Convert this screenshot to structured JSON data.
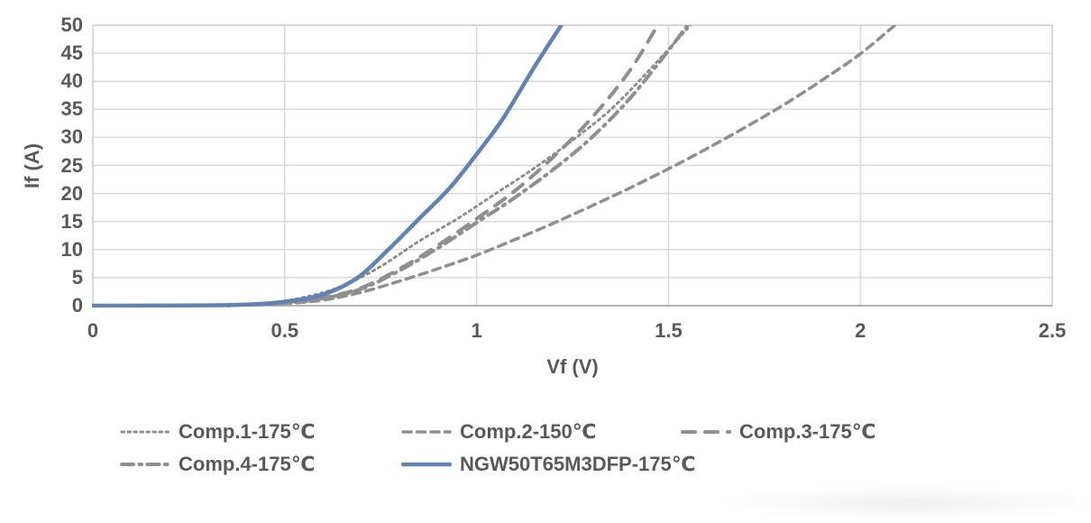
{
  "colors": {
    "text": "#595959",
    "grid": "#d9d9d9",
    "border": "#d2d2d2",
    "axis": "#b3b3b3",
    "series_gray": "#8f8f8f",
    "series_blue": "#6282b4",
    "background": "#ffffff"
  },
  "chart_data": {
    "type": "line",
    "title": "",
    "xlabel": "Vf (V)",
    "ylabel": "If (A)",
    "xlim": [
      0,
      2.5
    ],
    "ylim": [
      0,
      50
    ],
    "grid": true,
    "legend_position": "bottom-left",
    "x_ticks": [
      "0",
      "0.5",
      "1",
      "1.5",
      "2",
      "2.5"
    ],
    "x_tick_values": [
      0,
      0.5,
      1,
      1.5,
      2,
      2.5
    ],
    "y_ticks": [
      "0",
      "5",
      "10",
      "15",
      "20",
      "25",
      "30",
      "35",
      "40",
      "45",
      "50"
    ],
    "y_tick_values": [
      0,
      5,
      10,
      15,
      20,
      25,
      30,
      35,
      40,
      45,
      50
    ],
    "series": [
      {
        "name": "Comp.1-175℃",
        "style": "dotted",
        "color": "#8f8f8f",
        "points": [
          [
            0.3,
            0.1
          ],
          [
            0.45,
            0.5
          ],
          [
            0.55,
            1.5
          ],
          [
            0.65,
            3.5
          ],
          [
            0.75,
            7
          ],
          [
            0.85,
            11.5
          ],
          [
            0.95,
            15.5
          ],
          [
            1.05,
            20
          ],
          [
            1.15,
            24.5
          ],
          [
            1.25,
            29.5
          ],
          [
            1.35,
            35
          ],
          [
            1.45,
            42
          ],
          [
            1.57,
            51
          ]
        ]
      },
      {
        "name": "Comp.2-150℃",
        "style": "dashed",
        "color": "#8f8f8f",
        "points": [
          [
            0.35,
            0.05
          ],
          [
            0.5,
            0.4
          ],
          [
            0.6,
            1
          ],
          [
            0.7,
            2.4
          ],
          [
            0.8,
            4.4
          ],
          [
            0.9,
            6.6
          ],
          [
            1.0,
            9
          ],
          [
            1.1,
            11.8
          ],
          [
            1.2,
            14.7
          ],
          [
            1.3,
            17.8
          ],
          [
            1.4,
            21
          ],
          [
            1.5,
            24.4
          ],
          [
            1.6,
            28
          ],
          [
            1.7,
            31.8
          ],
          [
            1.8,
            35.8
          ],
          [
            1.9,
            40.2
          ],
          [
            2.0,
            44.9
          ],
          [
            2.1,
            50.6
          ]
        ]
      },
      {
        "name": "Comp.3-175℃",
        "style": "long-dash",
        "color": "#8f8f8f",
        "points": [
          [
            0.35,
            0.05
          ],
          [
            0.5,
            0.5
          ],
          [
            0.6,
            1.4
          ],
          [
            0.7,
            3.2
          ],
          [
            0.8,
            6.6
          ],
          [
            0.9,
            10.8
          ],
          [
            1.0,
            15.5
          ],
          [
            1.1,
            20.5
          ],
          [
            1.2,
            26.5
          ],
          [
            1.3,
            33.5
          ],
          [
            1.4,
            42
          ],
          [
            1.48,
            51
          ]
        ]
      },
      {
        "name": "Comp.4-175℃",
        "style": "dash-dot",
        "color": "#8f8f8f",
        "points": [
          [
            0.35,
            0.05
          ],
          [
            0.5,
            0.5
          ],
          [
            0.6,
            1.3
          ],
          [
            0.7,
            3
          ],
          [
            0.8,
            6.3
          ],
          [
            0.9,
            10.3
          ],
          [
            1.0,
            14.8
          ],
          [
            1.1,
            19.3
          ],
          [
            1.2,
            24.3
          ],
          [
            1.3,
            30
          ],
          [
            1.4,
            37
          ],
          [
            1.5,
            45.5
          ],
          [
            1.56,
            51
          ]
        ]
      },
      {
        "name": "NGW50T65M3DFP-175℃",
        "style": "solid",
        "color": "#6282b4",
        "points": [
          [
            0,
            0
          ],
          [
            0.25,
            0.05
          ],
          [
            0.4,
            0.2
          ],
          [
            0.5,
            0.7
          ],
          [
            0.6,
            2
          ],
          [
            0.69,
            5
          ],
          [
            0.77,
            10
          ],
          [
            0.85,
            15.5
          ],
          [
            0.93,
            21
          ],
          [
            1.0,
            27
          ],
          [
            1.07,
            33.5
          ],
          [
            1.15,
            42.5
          ],
          [
            1.23,
            51
          ]
        ]
      }
    ]
  }
}
